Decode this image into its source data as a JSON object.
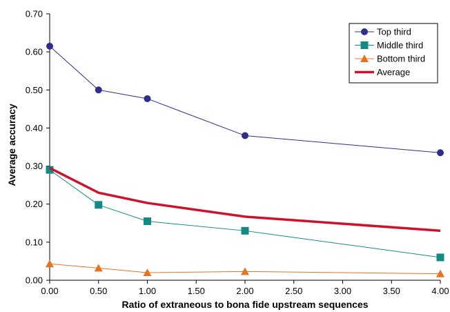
{
  "chart_data": {
    "type": "line",
    "xlabel": "Ratio of extraneous to bona fide upstream sequences",
    "ylabel": "Average accuracy",
    "xlim": [
      0,
      4
    ],
    "ylim": [
      0,
      0.7
    ],
    "x_ticks": [
      "0.00",
      "0.50",
      "1.00",
      "1.50",
      "2.00",
      "2.50",
      "3.00",
      "3.50",
      "4.00"
    ],
    "y_ticks": [
      "0.00",
      "0.10",
      "0.20",
      "0.30",
      "0.40",
      "0.50",
      "0.60",
      "0.70"
    ],
    "x_tick_values": [
      0,
      0.5,
      1,
      1.5,
      2,
      2.5,
      3,
      3.5,
      4
    ],
    "y_tick_values": [
      0,
      0.1,
      0.2,
      0.3,
      0.4,
      0.5,
      0.6,
      0.7
    ],
    "grid": false,
    "legend_position": "top-right",
    "x": [
      0,
      0.5,
      1,
      2,
      4
    ],
    "series": [
      {
        "name": "Top third",
        "values": [
          0.615,
          0.5,
          0.477,
          0.38,
          0.335
        ],
        "color": "#2e2e8c",
        "marker": "circle"
      },
      {
        "name": "Middle third",
        "values": [
          0.29,
          0.198,
          0.155,
          0.13,
          0.06
        ],
        "color": "#138a84",
        "marker": "square"
      },
      {
        "name": "Bottom third",
        "values": [
          0.043,
          0.032,
          0.02,
          0.023,
          0.017
        ],
        "color": "#e8731e",
        "marker": "triangle"
      },
      {
        "name": "Average",
        "values": [
          0.295,
          0.23,
          0.203,
          0.167,
          0.13
        ],
        "color": "#d0112b",
        "marker": "none",
        "line_width": "thick"
      }
    ]
  }
}
